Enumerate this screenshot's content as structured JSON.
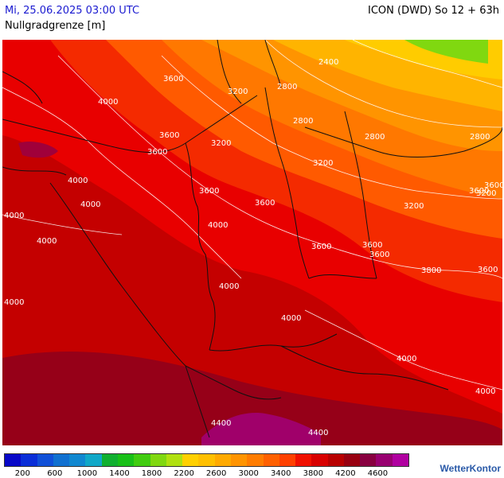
{
  "header": {
    "date": "Mi, 25.06.2025 03:00 UTC",
    "parameter": "Nullgradgrenze [m]",
    "model": "ICON (DWD) So 12 + 63h"
  },
  "map": {
    "contour_labels": [
      {
        "text": "3600"
      },
      {
        "text": "4000"
      },
      {
        "text": "3200"
      },
      {
        "text": "2800"
      },
      {
        "text": "3600"
      },
      {
        "text": "3200"
      },
      {
        "text": "2800"
      },
      {
        "text": "2400"
      },
      {
        "text": "2800"
      },
      {
        "text": "3600"
      },
      {
        "text": "3200"
      },
      {
        "text": "2800"
      },
      {
        "text": "4000"
      },
      {
        "text": "4000"
      },
      {
        "text": "3600"
      },
      {
        "text": "3600"
      },
      {
        "text": "3200"
      },
      {
        "text": "3600"
      },
      {
        "text": "3600"
      },
      {
        "text": "3200"
      },
      {
        "text": "4000"
      },
      {
        "text": "4000"
      },
      {
        "text": "4000"
      },
      {
        "text": "3600"
      },
      {
        "text": "3600"
      },
      {
        "text": "3600"
      },
      {
        "text": "3800"
      },
      {
        "text": "3600"
      },
      {
        "text": "4000"
      },
      {
        "text": "4000"
      },
      {
        "text": "4000"
      },
      {
        "text": "4000"
      },
      {
        "text": "4000"
      },
      {
        "text": "4400"
      },
      {
        "text": "4400"
      }
    ]
  },
  "legend": {
    "colors": [
      "#0808c8",
      "#0a2ed8",
      "#1050d8",
      "#1070d0",
      "#1088d0",
      "#10a8c8",
      "#10b030",
      "#18c018",
      "#40cc10",
      "#80d810",
      "#b0e010",
      "#ffd000",
      "#ffc000",
      "#ffaa00",
      "#ff9400",
      "#ff7c00",
      "#ff6000",
      "#ff4000",
      "#f01000",
      "#d80000",
      "#b80000",
      "#980010",
      "#880040",
      "#980070",
      "#b000a0"
    ],
    "ticks": [
      "200",
      "600",
      "1000",
      "1400",
      "1800",
      "2200",
      "2600",
      "3000",
      "3400",
      "3800",
      "4200",
      "4600"
    ]
  },
  "brand": {
    "name": "WetterKontor"
  }
}
